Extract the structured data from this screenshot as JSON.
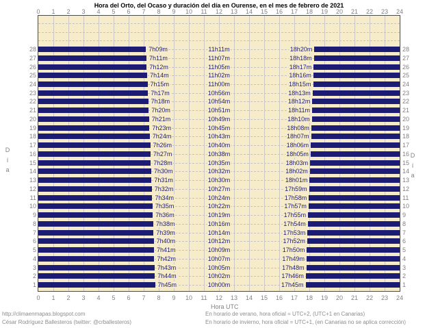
{
  "title": "Hora del Orto, del Ocaso y duración del día en Ourense, en el mes de febrero de 2021",
  "axis": {
    "x_label": "Hora UTC",
    "y_label": "Día",
    "hour_ticks": [
      0,
      1,
      2,
      3,
      4,
      5,
      6,
      7,
      8,
      9,
      10,
      11,
      12,
      13,
      14,
      15,
      16,
      17,
      18,
      19,
      20,
      21,
      22,
      23,
      24
    ]
  },
  "footer": {
    "left_line1": "http://climaenmapas.blogspot.com",
    "left_line2": "César Rodríguez Ballesteros (twitter: @crballesteros)",
    "right_line1": "En horario de verano, hora oficial = UTC+2, (UTC+1 en Canarias)",
    "right_line2": "En horario de invierno, hora oficial = UTC+1, (en Canarias no se aplica corrección)"
  },
  "colors": {
    "bar": "#1c1c74",
    "plot_bg": "#f6ecca",
    "grid": "#cbc7c7",
    "tick_text": "#808080",
    "time_label_text": "#1c1c74",
    "plot_border": "#4a4a4a"
  },
  "chart_data": {
    "type": "bar",
    "title": "Hora del Orto, del Ocaso y duración del día en Ourense, en el mes de febrero de 2021",
    "xlabel": "Hora UTC",
    "ylabel": "Día",
    "xlim": [
      0,
      24
    ],
    "x_ticks": [
      0,
      1,
      2,
      3,
      4,
      5,
      6,
      7,
      8,
      9,
      10,
      11,
      12,
      13,
      14,
      15,
      16,
      17,
      18,
      19,
      20,
      21,
      22,
      23,
      24
    ],
    "y_days_shown": [
      1,
      28
    ],
    "y_gridline_days_max": 31,
    "grid": "on",
    "days": [
      {
        "day": 28,
        "sunrise": "7h09m",
        "daylight": "11h11m",
        "sunset": "18h20m"
      },
      {
        "day": 27,
        "sunrise": "7h11m",
        "daylight": "11h07m",
        "sunset": "18h18m"
      },
      {
        "day": 26,
        "sunrise": "7h12m",
        "daylight": "11h05m",
        "sunset": "18h17m"
      },
      {
        "day": 25,
        "sunrise": "7h14m",
        "daylight": "11h02m",
        "sunset": "18h16m"
      },
      {
        "day": 24,
        "sunrise": "7h15m",
        "daylight": "11h00m",
        "sunset": "18h15m"
      },
      {
        "day": 23,
        "sunrise": "7h17m",
        "daylight": "10h56m",
        "sunset": "18h13m"
      },
      {
        "day": 22,
        "sunrise": "7h18m",
        "daylight": "10h54m",
        "sunset": "18h12m"
      },
      {
        "day": 21,
        "sunrise": "7h20m",
        "daylight": "10h51m",
        "sunset": "18h11m"
      },
      {
        "day": 20,
        "sunrise": "7h21m",
        "daylight": "10h49m",
        "sunset": "18h10m"
      },
      {
        "day": 19,
        "sunrise": "7h23m",
        "daylight": "10h45m",
        "sunset": "18h08m"
      },
      {
        "day": 18,
        "sunrise": "7h24m",
        "daylight": "10h43m",
        "sunset": "18h07m"
      },
      {
        "day": 17,
        "sunrise": "7h26m",
        "daylight": "10h40m",
        "sunset": "18h06m"
      },
      {
        "day": 16,
        "sunrise": "7h27m",
        "daylight": "10h38m",
        "sunset": "18h05m"
      },
      {
        "day": 15,
        "sunrise": "7h28m",
        "daylight": "10h35m",
        "sunset": "18h03m"
      },
      {
        "day": 14,
        "sunrise": "7h30m",
        "daylight": "10h32m",
        "sunset": "18h02m"
      },
      {
        "day": 13,
        "sunrise": "7h31m",
        "daylight": "10h30m",
        "sunset": "18h01m"
      },
      {
        "day": 12,
        "sunrise": "7h32m",
        "daylight": "10h27m",
        "sunset": "17h59m"
      },
      {
        "day": 11,
        "sunrise": "7h34m",
        "daylight": "10h24m",
        "sunset": "17h58m"
      },
      {
        "day": 10,
        "sunrise": "7h35m",
        "daylight": "10h22m",
        "sunset": "17h57m"
      },
      {
        "day": 9,
        "sunrise": "7h36m",
        "daylight": "10h19m",
        "sunset": "17h55m"
      },
      {
        "day": 8,
        "sunrise": "7h38m",
        "daylight": "10h16m",
        "sunset": "17h54m"
      },
      {
        "day": 7,
        "sunrise": "7h39m",
        "daylight": "10h14m",
        "sunset": "17h53m"
      },
      {
        "day": 6,
        "sunrise": "7h40m",
        "daylight": "10h12m",
        "sunset": "17h52m"
      },
      {
        "day": 5,
        "sunrise": "7h41m",
        "daylight": "10h09m",
        "sunset": "17h50m"
      },
      {
        "day": 4,
        "sunrise": "7h42m",
        "daylight": "10h07m",
        "sunset": "17h49m"
      },
      {
        "day": 3,
        "sunrise": "7h43m",
        "daylight": "10h05m",
        "sunset": "17h48m"
      },
      {
        "day": 2,
        "sunrise": "7h44m",
        "daylight": "10h02m",
        "sunset": "17h46m"
      },
      {
        "day": 1,
        "sunrise": "7h45m",
        "daylight": "10h00m",
        "sunset": "17h45m"
      }
    ]
  }
}
